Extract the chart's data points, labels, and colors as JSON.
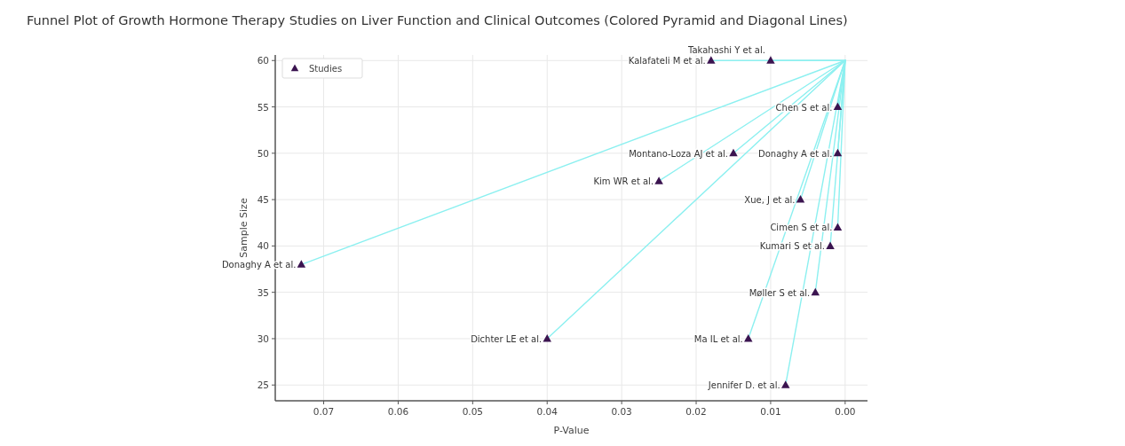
{
  "chart_data": {
    "type": "scatter",
    "title": "Funnel Plot of Growth Hormone Therapy Studies on Liver Function and Clinical Outcomes (Colored Pyramid and Diagonal Lines)",
    "xlabel": "P-Value",
    "ylabel": "Sample Size",
    "xlim": [
      0.0765,
      -0.003
    ],
    "ylim": [
      23.3,
      60.6
    ],
    "xticks": [
      {
        "value": 0.07,
        "label": "0.07"
      },
      {
        "value": 0.06,
        "label": "0.06"
      },
      {
        "value": 0.05,
        "label": "0.05"
      },
      {
        "value": 0.04,
        "label": "0.04"
      },
      {
        "value": 0.03,
        "label": "0.03"
      },
      {
        "value": 0.02,
        "label": "0.02"
      },
      {
        "value": 0.01,
        "label": "0.01"
      },
      {
        "value": 0,
        "label": "0.00"
      }
    ],
    "yticks": [
      25,
      30,
      35,
      40,
      45,
      50,
      55,
      60
    ],
    "grid": true,
    "legend": "top left",
    "series": [
      {
        "name": "Studies",
        "marker": "triangle",
        "color": "#3b1450",
        "x": [
          0.073,
          0.04,
          0.025,
          0.015,
          0.018,
          0.01,
          0.001,
          0.001,
          0.006,
          0.001,
          0.002,
          0.004,
          0.013,
          0.008
        ],
        "values": [
          38,
          30,
          47,
          50,
          60,
          60,
          55,
          50,
          45,
          42,
          40,
          35,
          30,
          25
        ]
      },
      {
        "type": "line",
        "color": "#8cf0f0",
        "x": [
          0.073,
          0
        ],
        "values": [
          38,
          60
        ]
      },
      {
        "type": "line",
        "color": "#8cf0f0",
        "x": [
          0.04,
          0
        ],
        "values": [
          30,
          60
        ]
      },
      {
        "type": "line",
        "color": "#8cf0f0",
        "x": [
          0.025,
          0
        ],
        "values": [
          47,
          60
        ]
      },
      {
        "type": "line",
        "color": "#8cf0f0",
        "x": [
          0.015,
          0
        ],
        "values": [
          50,
          60
        ]
      },
      {
        "type": "line",
        "color": "#8cf0f0",
        "x": [
          0.018,
          0
        ],
        "values": [
          60,
          60
        ]
      },
      {
        "type": "line",
        "color": "#8cf0f0",
        "x": [
          0.01,
          0
        ],
        "values": [
          60,
          60
        ]
      },
      {
        "type": "line",
        "color": "#8cf0f0",
        "x": [
          0.001,
          0
        ],
        "values": [
          55,
          60
        ]
      },
      {
        "type": "line",
        "color": "#8cf0f0",
        "x": [
          0.001,
          0
        ],
        "values": [
          50,
          60
        ]
      },
      {
        "type": "line",
        "color": "#8cf0f0",
        "x": [
          0.006,
          0
        ],
        "values": [
          45,
          60
        ]
      },
      {
        "type": "line",
        "color": "#8cf0f0",
        "x": [
          0.001,
          0
        ],
        "values": [
          42,
          60
        ]
      },
      {
        "type": "line",
        "color": "#8cf0f0",
        "x": [
          0.002,
          0
        ],
        "values": [
          40,
          60
        ]
      },
      {
        "type": "line",
        "color": "#8cf0f0",
        "x": [
          0.004,
          0
        ],
        "values": [
          35,
          60
        ]
      },
      {
        "type": "line",
        "color": "#8cf0f0",
        "x": [
          0.013,
          0
        ],
        "values": [
          30,
          60
        ]
      },
      {
        "type": "line",
        "color": "#8cf0f0",
        "x": [
          0.008,
          0
        ],
        "values": [
          25,
          60
        ]
      }
    ],
    "annotations": [
      {
        "text": "Donaghy A et al.",
        "x": 0.073,
        "y": 38
      },
      {
        "text": "Dichter LE et al.",
        "x": 0.04,
        "y": 30
      },
      {
        "text": "Kim WR et al.",
        "x": 0.025,
        "y": 47
      },
      {
        "text": "Montano-Loza AJ et al.",
        "x": 0.015,
        "y": 50
      },
      {
        "text": "Kalafateli M et al.",
        "x": 0.018,
        "y": 60
      },
      {
        "text": "Takahashi Y et al.",
        "x": 0.01,
        "y": 60
      },
      {
        "text": "Chen S et al.",
        "x": 0.001,
        "y": 55
      },
      {
        "text": "Donaghy A et al.",
        "x": 0.001,
        "y": 50
      },
      {
        "text": "Xue, J et al.",
        "x": 0.006,
        "y": 45
      },
      {
        "text": "Cimen S et al.",
        "x": 0.001,
        "y": 42
      },
      {
        "text": "Kumari S et al.",
        "x": 0.002,
        "y": 40
      },
      {
        "text": "Møller S et al.",
        "x": 0.004,
        "y": 35
      },
      {
        "text": "Ma IL et al.",
        "x": 0.013,
        "y": 30
      },
      {
        "text": "Jennifer D. et al.",
        "x": 0.008,
        "y": 25
      }
    ]
  }
}
